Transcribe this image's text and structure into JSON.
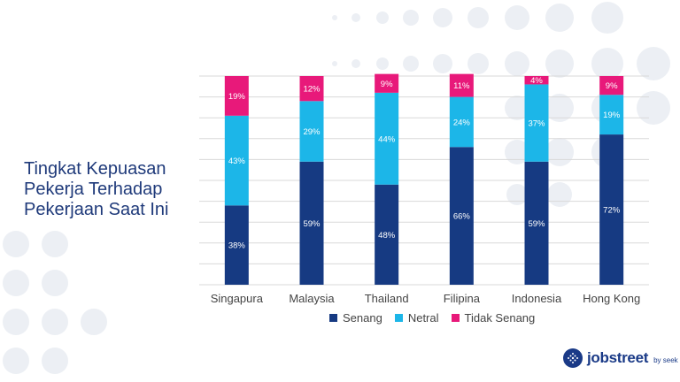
{
  "title_lines": [
    "Tingkat Kepuasan",
    "Pekerja Terhadap",
    "Pekerjaan Saat Ini"
  ],
  "brand": {
    "name": "jobstreet",
    "sub": "by seek"
  },
  "colors": {
    "senang": "#163a82",
    "netral": "#1cb6e8",
    "tidak_senang": "#e8197a",
    "dot": "#eceff4"
  },
  "chart_data": {
    "type": "bar",
    "stacked": true,
    "title": "Tingkat Kepuasan Pekerja Terhadap Pekerjaan Saat Ini",
    "categories": [
      "Singapura",
      "Malaysia",
      "Thailand",
      "Filipina",
      "Indonesia",
      "Hong Kong"
    ],
    "series": [
      {
        "name": "Senang",
        "key": "senang",
        "values": [
          38,
          59,
          48,
          66,
          59,
          72
        ]
      },
      {
        "name": "Netral",
        "key": "netral",
        "values": [
          43,
          29,
          44,
          24,
          37,
          19
        ]
      },
      {
        "name": "Tidak Senang",
        "key": "tidak_senang",
        "values": [
          19,
          12,
          9,
          11,
          4,
          9
        ]
      }
    ],
    "value_suffix": "%",
    "ylim": [
      0,
      100
    ],
    "grid": true,
    "legend_position": "bottom"
  }
}
